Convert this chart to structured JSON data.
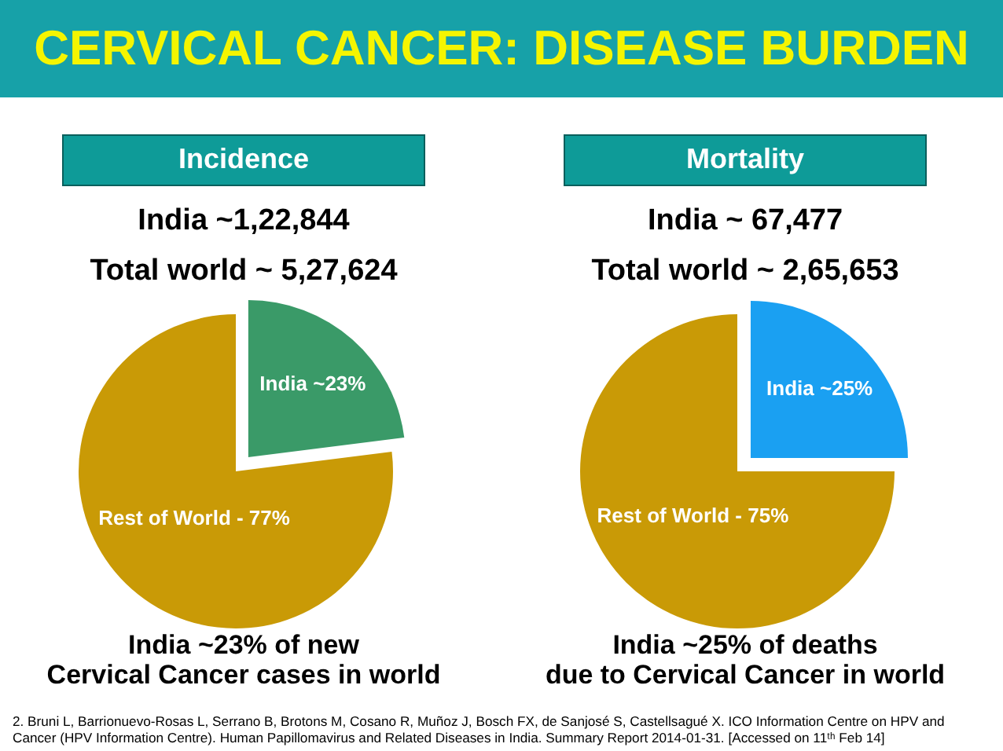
{
  "chart_data": [
    {
      "type": "other",
      "title": "CERVICAL CANCER: DISEASE BURDEN"
    },
    {
      "type": "pie",
      "title": "Incidence",
      "subtitle": [
        "India ~1,22,844",
        "Total world ~ 5,27,624"
      ],
      "categories": [
        "India ~23%",
        "Rest of World - 77%"
      ],
      "values": [
        23,
        77
      ],
      "colors": [
        "#3a9a68",
        "#c99a06"
      ],
      "annotations": [
        "India ~23% of new\nCervical Cancer cases in world"
      ]
    },
    {
      "type": "pie",
      "title": "Mortality",
      "subtitle": [
        "India ~ 67,477",
        "Total world ~ 2,65,653"
      ],
      "categories": [
        "India ~25%",
        "Rest of World - 75%"
      ],
      "values": [
        25,
        75
      ],
      "colors": [
        "#1aa0f2",
        "#c99a06"
      ],
      "annotations": [
        "India ~25% of deaths\ndue to Cervical Cancer in world"
      ]
    },
    {
      "type": "other",
      "annotations": [
        "2. Bruni L, Barrionuevo-Rosas L, Serrano B, Brotons M, Cosano R, Muñoz J, Bosch FX, de Sanjosé S, Castellsagué X. ICO Information Centre on HPV and\nCancer (HPV Information Centre). Human Papillomavirus and Related Diseases in India. Summary Report 2014-01-31. [Accessed on 11ᵗʰ Feb 14]"
      ]
    }
  ]
}
